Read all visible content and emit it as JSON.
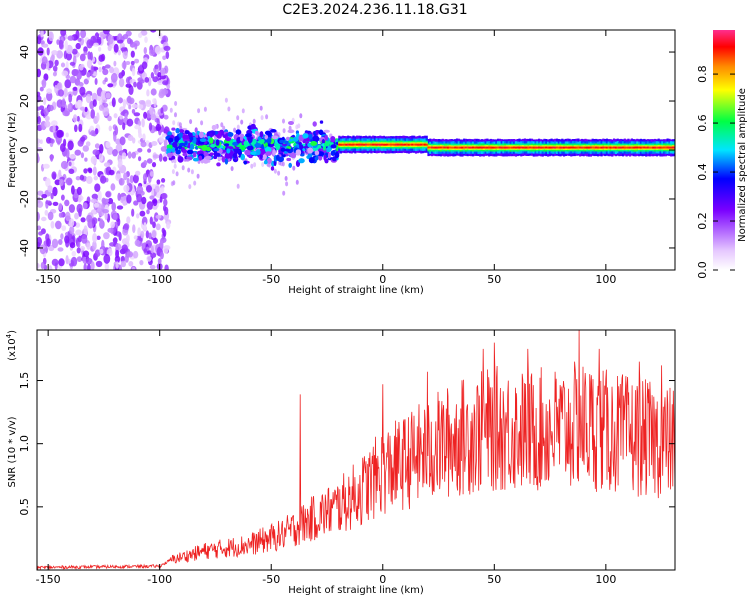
{
  "title": "C2E3.2024.236.11.18.G31",
  "colors": {
    "snr_line": "#ee2222",
    "grid_ticks": "#000000"
  },
  "chart_data": [
    {
      "type": "heatmap",
      "xlabel": "Height of straight line (km)",
      "ylabel": "Frequency (Hz)",
      "xlim": [
        -155,
        131
      ],
      "ylim": [
        -49,
        49
      ],
      "xticks": [
        -150,
        -100,
        -50,
        0,
        50,
        100
      ],
      "yticks": [
        -40,
        -20,
        0,
        20,
        40
      ],
      "description_regions": [
        {
          "x_range": [
            -155,
            -96
          ],
          "freq_spread": 49,
          "amplitude": [
            0.05,
            0.25
          ]
        },
        {
          "x_range": [
            -96,
            -20
          ],
          "freq_center": 2,
          "freq_spread": 7,
          "amplitude": [
            0.1,
            0.5
          ]
        },
        {
          "x_range": [
            -20,
            131
          ],
          "freq_center": 1,
          "freq_spread": 3,
          "amplitude": [
            0.6,
            0.95
          ]
        }
      ],
      "colorbar": {
        "label": "Normalized spectral amplitude",
        "range": [
          0.0,
          0.98
        ],
        "ticks": [
          "0.0",
          "0.2",
          "0.4",
          "0.6",
          "0.8"
        ],
        "tick_values": [
          0.0,
          0.2,
          0.4,
          0.6,
          0.8
        ]
      }
    },
    {
      "type": "line",
      "xlabel": "Height of straight line (km)",
      "ylabel": "SNR (10 * v/v)",
      "y_multiplier": "(x10",
      "y_multiplier_exp": "4",
      "y_multiplier_close": ")",
      "xlim": [
        -155,
        131
      ],
      "ylim": [
        0,
        1.9
      ],
      "xticks": [
        -150,
        -100,
        -50,
        0,
        50,
        100
      ],
      "yticks": [
        "0.5",
        "1.0",
        "1.5"
      ],
      "ytick_values": [
        0.5,
        1.0,
        1.5
      ],
      "trend": [
        [
          -155,
          0.02
        ],
        [
          -100,
          0.03
        ],
        [
          -95,
          0.08
        ],
        [
          -80,
          0.15
        ],
        [
          -60,
          0.2
        ],
        [
          -45,
          0.28
        ],
        [
          -30,
          0.42
        ],
        [
          -20,
          0.5
        ],
        [
          -10,
          0.62
        ],
        [
          0,
          0.78
        ],
        [
          10,
          0.85
        ],
        [
          20,
          0.95
        ],
        [
          35,
          1.05
        ],
        [
          50,
          1.12
        ],
        [
          65,
          1.1
        ],
        [
          80,
          1.12
        ],
        [
          90,
          1.15
        ],
        [
          100,
          1.1
        ],
        [
          115,
          1.05
        ],
        [
          131,
          1.0
        ]
      ],
      "peaks": [
        [
          -37,
          1.39
        ],
        [
          0,
          1.47
        ],
        [
          20,
          1.57
        ],
        [
          45,
          1.75
        ],
        [
          50,
          1.8
        ],
        [
          65,
          1.75
        ],
        [
          88,
          1.9
        ],
        [
          97,
          1.75
        ],
        [
          115,
          1.65
        ],
        [
          125,
          1.62
        ]
      ]
    }
  ]
}
